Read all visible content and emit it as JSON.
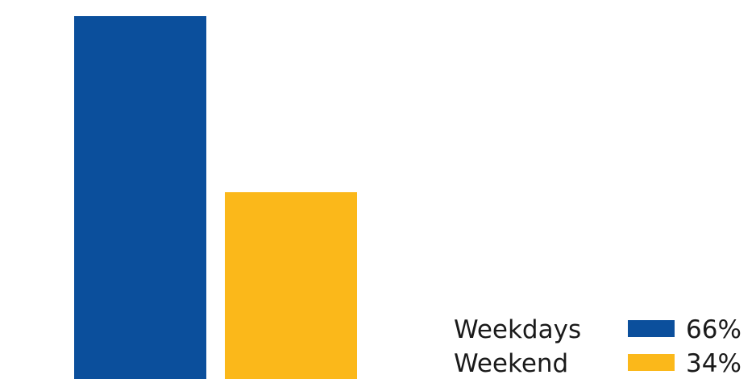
{
  "chart_data": {
    "type": "bar",
    "categories": [
      "Weekdays",
      "Weekend"
    ],
    "values": [
      66,
      34
    ],
    "value_labels": [
      "66%",
      "34%"
    ],
    "colors": [
      "#0b4f9c",
      "#fbb81a"
    ],
    "title": "",
    "xlabel": "",
    "ylabel": "",
    "ylim": [
      0,
      66
    ],
    "grid": false,
    "axes_visible": false,
    "legend": {
      "placement": "bottom-right",
      "items": [
        {
          "label": "Weekdays",
          "value": "66%",
          "color": "#0b4f9c"
        },
        {
          "label": "Weekend",
          "value": "34%",
          "color": "#fbb81a"
        }
      ]
    }
  }
}
